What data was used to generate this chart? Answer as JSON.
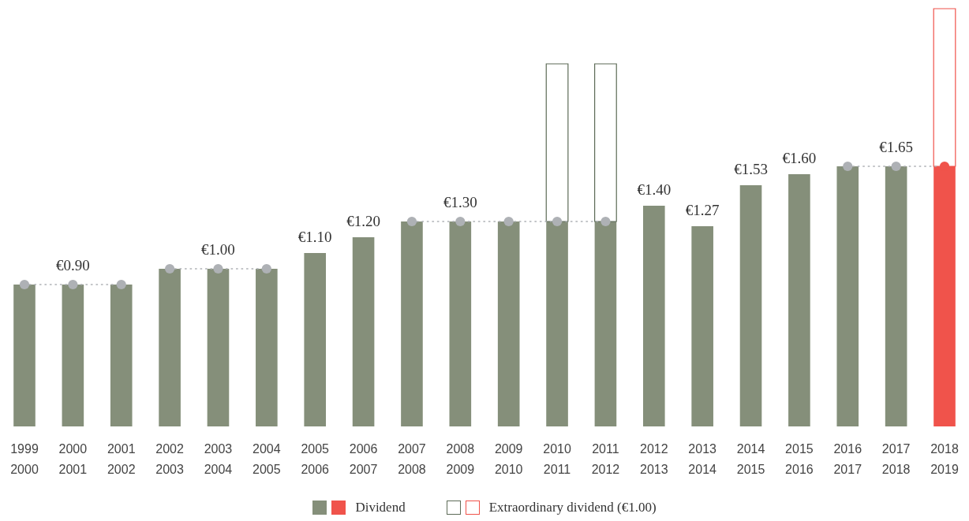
{
  "chart_data": {
    "type": "bar",
    "stacked": true,
    "categories": [
      "1999\n2000",
      "2000\n2001",
      "2001\n2002",
      "2002\n2003",
      "2003\n2004",
      "2004\n2005",
      "2005\n2006",
      "2006\n2007",
      "2007\n2008",
      "2008\n2009",
      "2009\n2010",
      "2010\n2011",
      "2011\n2012",
      "2012\n2013",
      "2013\n2014",
      "2014\n2015",
      "2015\n2016",
      "2016\n2017",
      "2017\n2018",
      "2018\n2019"
    ],
    "ylim": [
      0,
      2.65
    ],
    "legend": "bottom",
    "series": [
      {
        "name": "Dividend",
        "colors": [
          "#858f7a",
          "#858f7a",
          "#858f7a",
          "#858f7a",
          "#858f7a",
          "#858f7a",
          "#858f7a",
          "#858f7a",
          "#858f7a",
          "#858f7a",
          "#858f7a",
          "#858f7a",
          "#858f7a",
          "#858f7a",
          "#858f7a",
          "#858f7a",
          "#858f7a",
          "#858f7a",
          "#858f7a",
          "#f0534b"
        ],
        "values": [
          0.9,
          0.9,
          0.9,
          1.0,
          1.0,
          1.0,
          1.1,
          1.2,
          1.3,
          1.3,
          1.3,
          1.3,
          1.3,
          1.4,
          1.27,
          1.53,
          1.6,
          1.65,
          1.65,
          1.65
        ],
        "value_labels": [
          null,
          "€0.90",
          null,
          null,
          "€1.00",
          null,
          "€1.10",
          "€1.20",
          null,
          "€1.30",
          null,
          null,
          null,
          "€1.40",
          "€1.27",
          "€1.53",
          "€1.60",
          null,
          "€1.65",
          null
        ]
      },
      {
        "name": "Extraordinary dividend (€1.00)",
        "colors": [
          null,
          null,
          null,
          null,
          null,
          null,
          null,
          null,
          null,
          null,
          null,
          "#5d6b57",
          "#5d6b57",
          null,
          null,
          null,
          null,
          null,
          null,
          "#f0534b"
        ],
        "values": [
          null,
          null,
          null,
          null,
          null,
          null,
          null,
          null,
          null,
          null,
          null,
          1.0,
          1.0,
          null,
          null,
          null,
          null,
          null,
          null,
          1.0
        ]
      },
      {
        "type": "line",
        "marker": "circle",
        "line_style": "dotted",
        "colors": [
          "#aeb1b5",
          "#aeb1b5",
          "#aeb1b5",
          "#aeb1b5",
          "#aeb1b5",
          "#aeb1b5",
          null,
          null,
          "#aeb1b5",
          "#aeb1b5",
          "#aeb1b5",
          "#aeb1b5",
          "#aeb1b5",
          null,
          null,
          null,
          null,
          "#aeb1b5",
          "#aeb1b5",
          "#f0534b"
        ],
        "values": [
          0.9,
          0.9,
          0.9,
          1.0,
          1.0,
          1.0,
          null,
          null,
          1.3,
          1.3,
          1.3,
          1.3,
          1.3,
          null,
          null,
          null,
          null,
          1.65,
          1.65,
          1.65
        ]
      }
    ]
  }
}
